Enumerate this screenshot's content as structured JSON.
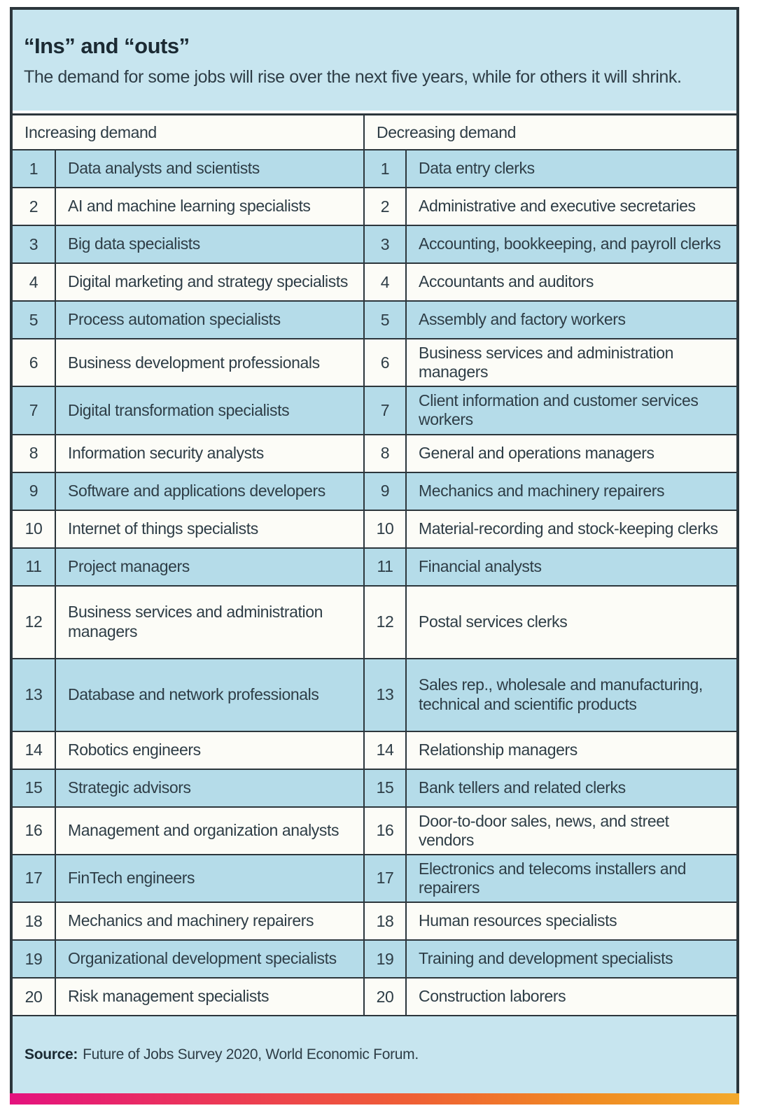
{
  "header": {
    "title": "“Ins” and “outs”",
    "subtitle": "The demand for some jobs will rise over the next five years, while for others it will shrink."
  },
  "chart_data": {
    "type": "table",
    "title": "“Ins” and “outs”",
    "subtitle": "The demand for some jobs will rise over the next five years, while for others it will shrink.",
    "columns": [
      "Increasing demand",
      "Decreasing demand"
    ],
    "ranks": [
      "1",
      "2",
      "3",
      "4",
      "5",
      "6",
      "7",
      "8",
      "9",
      "10",
      "11",
      "12",
      "13",
      "14",
      "15",
      "16",
      "17",
      "18",
      "19",
      "20"
    ],
    "increasing": [
      "Data analysts and scientists",
      "AI and machine learning specialists",
      "Big data specialists",
      "Digital marketing and strategy specialists",
      "Process automation specialists",
      "Business development professionals",
      "Digital transformation specialists",
      "Information security analysts",
      "Software and applications developers",
      "Internet of things specialists",
      "Project managers",
      "Business services and administration managers",
      "Database and network professionals",
      "Robotics engineers",
      "Strategic advisors",
      "Management and organization analysts",
      "FinTech engineers",
      "Mechanics and machinery repairers",
      "Organizational development specialists",
      "Risk management specialists"
    ],
    "decreasing": [
      "Data entry clerks",
      "Administrative and executive secretaries",
      "Accounting, bookkeeping, and payroll clerks",
      "Accountants and auditors",
      "Assembly and factory workers",
      "Business services and administration managers",
      "Client information and customer services workers",
      "General and operations managers",
      "Mechanics and machinery repairers",
      "Material-recording and stock-keeping clerks",
      "Financial analysts",
      "Postal services clerks",
      "Sales rep., wholesale and manufacturing, technical and scientific products",
      "Relationship managers",
      "Bank tellers and related clerks",
      "Door-to-door sales, news, and street vendors",
      "Electronics and telecoms installers and repairers",
      "Human resources specialists",
      "Training and development specialists",
      "Construction laborers"
    ]
  },
  "footer": {
    "source_label": "Source:",
    "source_text": "Future of Jobs Survey 2020, World Economic Forum."
  },
  "colors": {
    "panel_blue": "#c7e5ef",
    "row_blue": "#b5dce9",
    "row_white": "#fcfcf7",
    "border": "#2c363c",
    "text": "#2e3d46",
    "gradient_start": "#e4127e",
    "gradient_mid": "#ef5f35",
    "gradient_end": "#f3a92c"
  }
}
